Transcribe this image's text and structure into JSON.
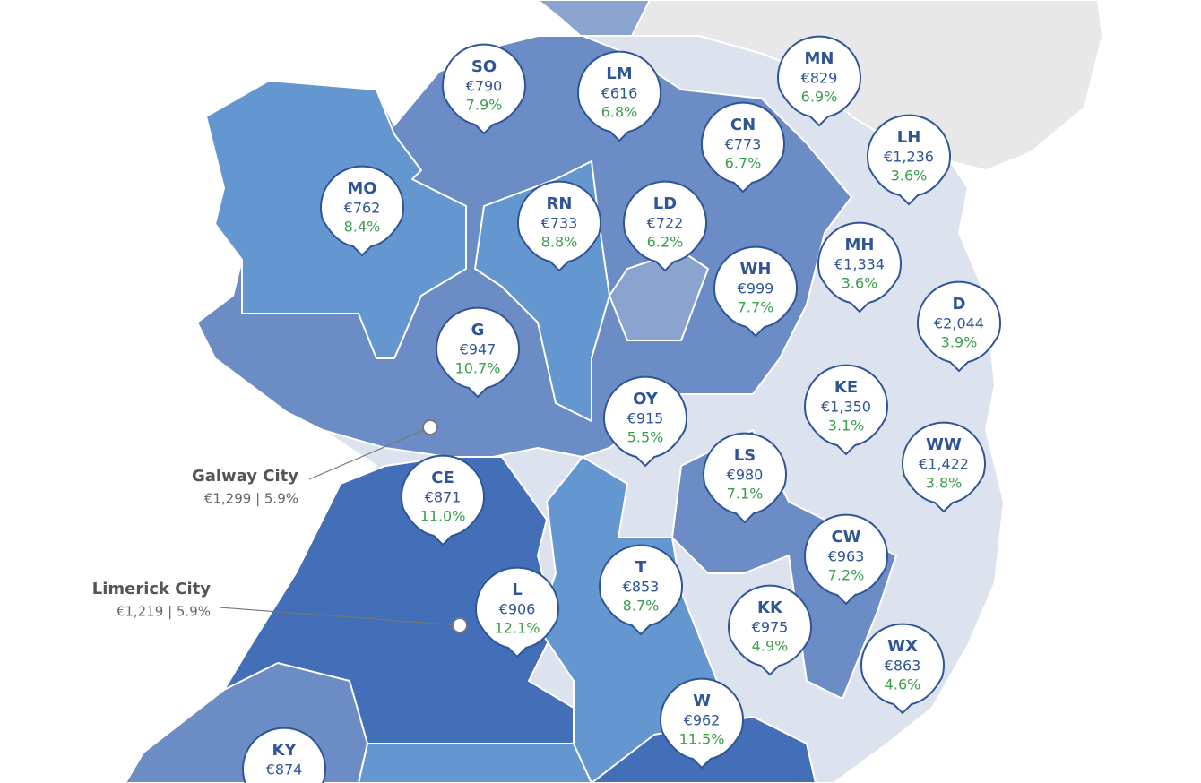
{
  "pins": [
    {
      "code": "SO",
      "rent": "€790",
      "change": "7.9%"
    },
    {
      "code": "LM",
      "rent": "€616",
      "change": "6.8%"
    },
    {
      "code": "MN",
      "rent": "€829",
      "change": "6.9%"
    },
    {
      "code": "CN",
      "rent": "€773",
      "change": "6.7%"
    },
    {
      "code": "LH",
      "rent": "€1,236",
      "change": "3.6%"
    },
    {
      "code": "MO",
      "rent": "€762",
      "change": "8.4%"
    },
    {
      "code": "RN",
      "rent": "€733",
      "change": "8.8%"
    },
    {
      "code": "LD",
      "rent": "€722",
      "change": "6.2%"
    },
    {
      "code": "MH",
      "rent": "€1,334",
      "change": "3.6%"
    },
    {
      "code": "WH",
      "rent": "€999",
      "change": "7.7%"
    },
    {
      "code": "D",
      "rent": "€2,044",
      "change": "3.9%"
    },
    {
      "code": "G",
      "rent": "€947",
      "change": "10.7%"
    },
    {
      "code": "OY",
      "rent": "€915",
      "change": "5.5%"
    },
    {
      "code": "KE",
      "rent": "€1,350",
      "change": "3.1%"
    },
    {
      "code": "LS",
      "rent": "€980",
      "change": "7.1%"
    },
    {
      "code": "WW",
      "rent": "€1,422",
      "change": "3.8%"
    },
    {
      "code": "CE",
      "rent": "€871",
      "change": "11.0%"
    },
    {
      "code": "CW",
      "rent": "€963",
      "change": "7.2%"
    },
    {
      "code": "T",
      "rent": "€853",
      "change": "8.7%"
    },
    {
      "code": "L",
      "rent": "€906",
      "change": "12.1%"
    },
    {
      "code": "KK",
      "rent": "€975",
      "change": "4.9%"
    },
    {
      "code": "WX",
      "rent": "€863",
      "change": "4.6%"
    },
    {
      "code": "W",
      "rent": "€962",
      "change": "11.5%"
    },
    {
      "code": "KY",
      "rent": "€874"
    }
  ],
  "cities": [
    {
      "name": "Galway City",
      "detail": "€1,299  |  5.9%"
    },
    {
      "name": "Limerick City",
      "detail": "€1,219  |  5.9%"
    }
  ]
}
